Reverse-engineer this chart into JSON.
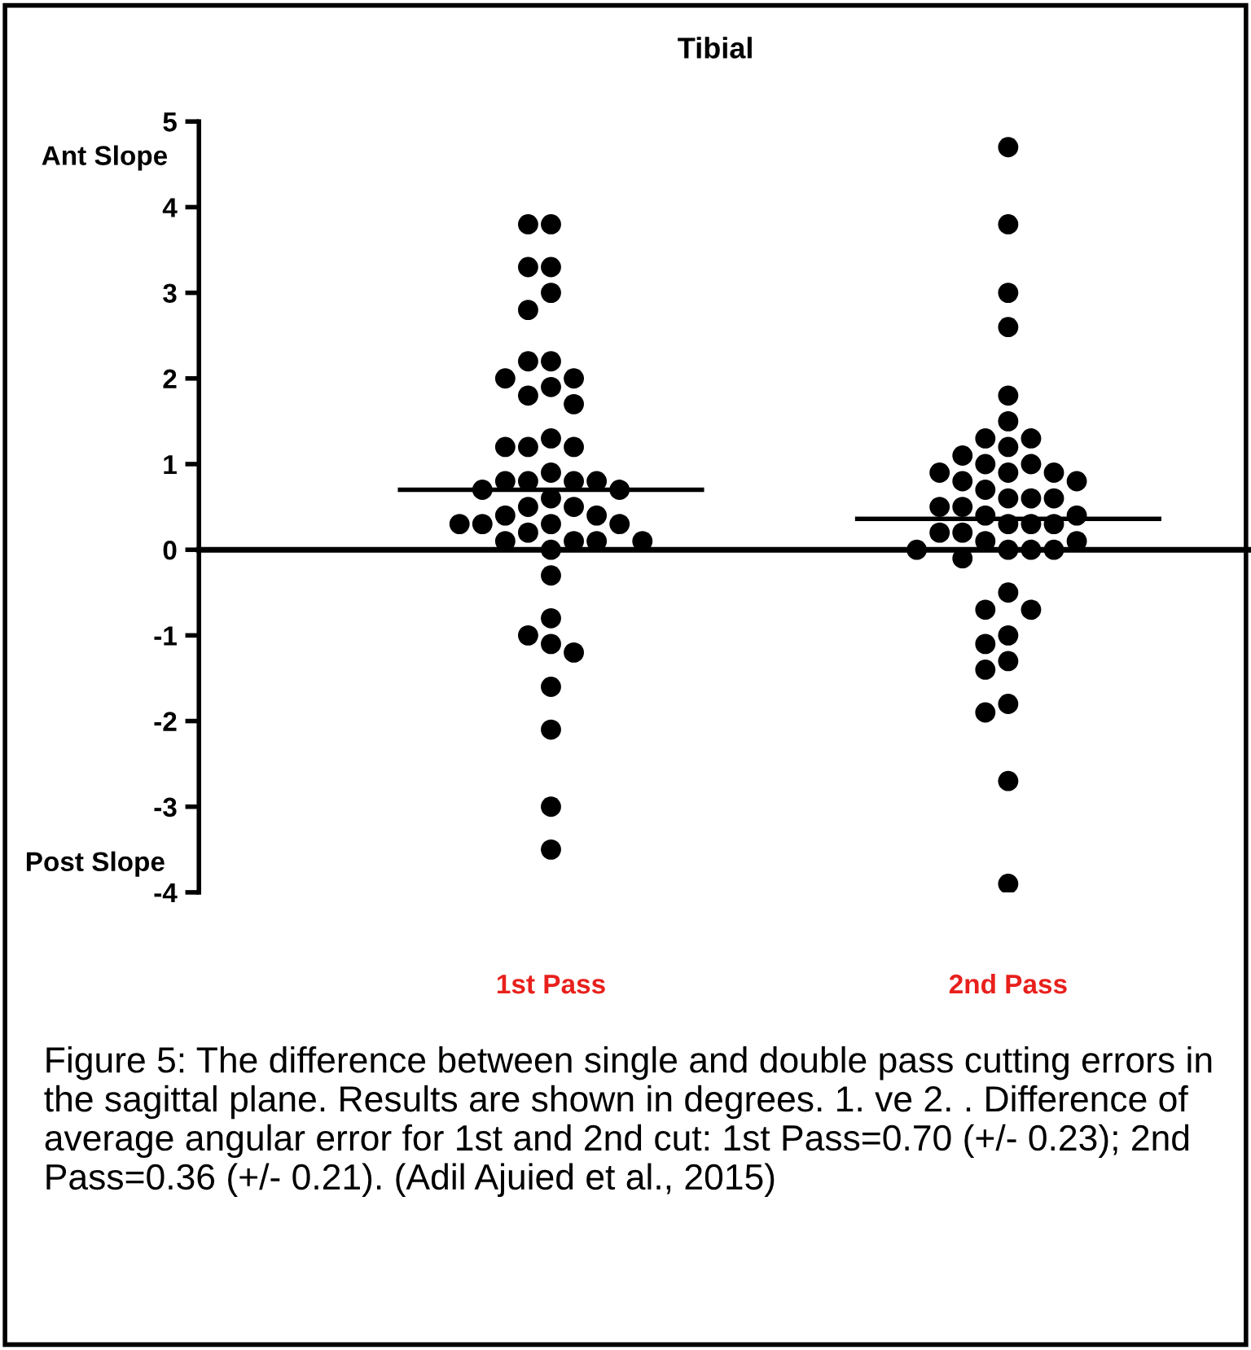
{
  "chart_data": {
    "type": "scatter",
    "title": "Tibial",
    "categories": [
      "1st Pass",
      "2nd Pass"
    ],
    "series": [
      {
        "color": "#000000",
        "marker": "circle",
        "x": [
          "1st Pass",
          "1st Pass",
          "1st Pass",
          "1st Pass",
          "1st Pass",
          "1st Pass",
          "1st Pass",
          "1st Pass",
          "1st Pass",
          "1st Pass",
          "1st Pass",
          "1st Pass",
          "1st Pass",
          "1st Pass",
          "1st Pass",
          "1st Pass",
          "1st Pass",
          "1st Pass",
          "1st Pass",
          "1st Pass",
          "1st Pass",
          "1st Pass",
          "1st Pass",
          "1st Pass",
          "1st Pass",
          "1st Pass",
          "1st Pass",
          "1st Pass",
          "1st Pass",
          "1st Pass",
          "1st Pass",
          "1st Pass",
          "1st Pass",
          "1st Pass",
          "1st Pass",
          "1st Pass",
          "1st Pass",
          "1st Pass",
          "1st Pass",
          "1st Pass",
          "1st Pass",
          "1st Pass",
          "1st Pass",
          "1st Pass",
          "1st Pass",
          "1st Pass",
          "1st Pass",
          "1st Pass"
        ],
        "values": [
          3.8,
          3.8,
          3.3,
          3.3,
          3.0,
          2.8,
          2.2,
          2.2,
          2.0,
          2.0,
          1.9,
          1.8,
          1.7,
          1.3,
          1.2,
          1.2,
          1.2,
          0.9,
          0.8,
          0.8,
          0.8,
          0.8,
          0.7,
          0.7,
          0.6,
          0.5,
          0.5,
          0.4,
          0.4,
          0.3,
          0.3,
          0.3,
          0.3,
          0.2,
          0.1,
          0.1,
          0.1,
          0.1,
          0.0,
          -0.3,
          -0.8,
          -1.0,
          -1.1,
          -1.2,
          -1.6,
          -2.1,
          -3.0,
          -3.5
        ]
      },
      {
        "color": "#000000",
        "marker": "circle",
        "x": [
          "2nd Pass",
          "2nd Pass",
          "2nd Pass",
          "2nd Pass",
          "2nd Pass",
          "2nd Pass",
          "2nd Pass",
          "2nd Pass",
          "2nd Pass",
          "2nd Pass",
          "2nd Pass",
          "2nd Pass",
          "2nd Pass",
          "2nd Pass",
          "2nd Pass",
          "2nd Pass",
          "2nd Pass",
          "2nd Pass",
          "2nd Pass",
          "2nd Pass",
          "2nd Pass",
          "2nd Pass",
          "2nd Pass",
          "2nd Pass",
          "2nd Pass",
          "2nd Pass",
          "2nd Pass",
          "2nd Pass",
          "2nd Pass",
          "2nd Pass",
          "2nd Pass",
          "2nd Pass",
          "2nd Pass",
          "2nd Pass",
          "2nd Pass",
          "2nd Pass",
          "2nd Pass",
          "2nd Pass",
          "2nd Pass",
          "2nd Pass",
          "2nd Pass",
          "2nd Pass",
          "2nd Pass",
          "2nd Pass",
          "2nd Pass",
          "2nd Pass",
          "2nd Pass",
          "2nd Pass"
        ],
        "values": [
          4.7,
          3.8,
          3.0,
          2.6,
          1.8,
          1.5,
          1.3,
          1.3,
          1.2,
          1.1,
          1.0,
          1.0,
          0.9,
          0.9,
          0.9,
          0.8,
          0.8,
          0.7,
          0.6,
          0.6,
          0.6,
          0.5,
          0.5,
          0.4,
          0.4,
          0.3,
          0.3,
          0.3,
          0.2,
          0.2,
          0.1,
          0.1,
          0.0,
          0.0,
          0.0,
          0.0,
          -0.1,
          -0.5,
          -0.7,
          -0.7,
          -1.0,
          -1.1,
          -1.3,
          -1.4,
          -1.8,
          -1.9,
          -2.7,
          -3.9
        ]
      }
    ],
    "ylim": [
      -4,
      5
    ],
    "yticks": [
      -4,
      -3,
      -2,
      -1,
      0,
      1,
      2,
      3,
      4,
      5
    ],
    "ref_lines": [
      {
        "axis": "y",
        "value": 0,
        "color": "#000000",
        "line_style": "solid"
      },
      {
        "axis": "y",
        "value": 0.7,
        "color": "#000000",
        "line_style": "solid"
      },
      {
        "axis": "y",
        "value": 0.36,
        "color": "#000000",
        "line_style": "solid"
      }
    ],
    "grid": false,
    "legend": false,
    "annotations": [
      "Ant Slope",
      "Post Slope",
      "Figure 5: The difference between single and double pass cutting errors in the sagittal plane. Results are shown in degrees. 1. ve 2. . Difference of average angular error for 1st and 2nd cut: 1st Pass=0.70 (+/- 0.23); 2nd Pass=0.36 (+/- 0.21). (Adil Ajuied et al., 2015)"
    ]
  }
}
